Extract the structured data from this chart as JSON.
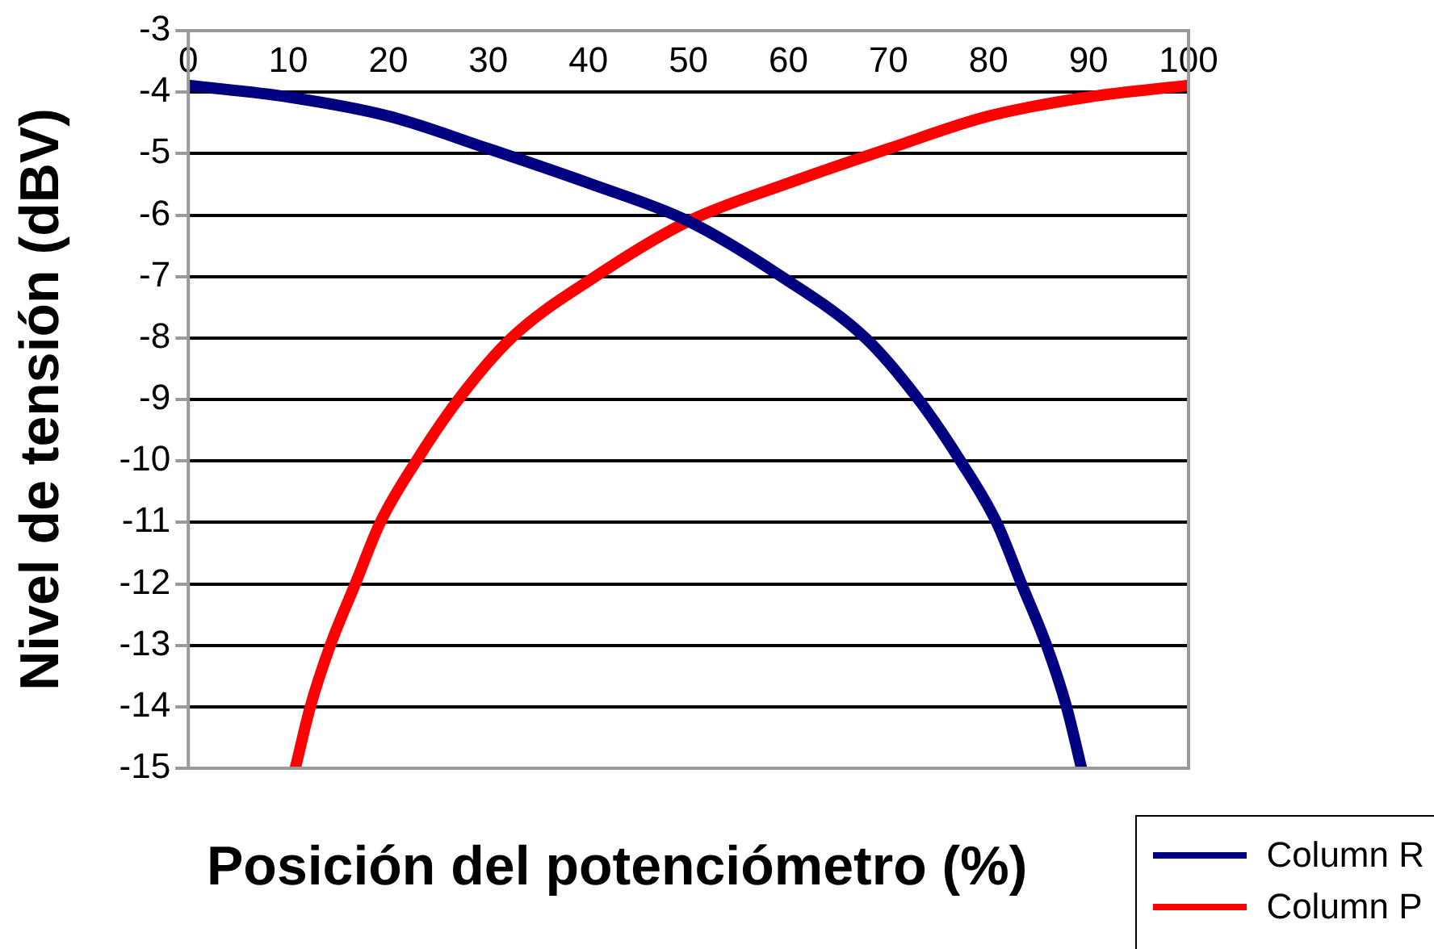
{
  "chart_data": {
    "type": "line",
    "xlabel": "Posición del potenciómetro (%)",
    "ylabel": "Nivel de tensión (dBV)",
    "xlim": [
      0,
      100
    ],
    "xticks": [
      0,
      10,
      20,
      30,
      40,
      50,
      60,
      70,
      80,
      90,
      100
    ],
    "ylim": [
      -15,
      -3
    ],
    "yticks": [
      -15,
      -14,
      -13,
      -12,
      -11,
      -10,
      -9,
      -8,
      -7,
      -6,
      -5,
      -4,
      -3
    ],
    "grid": "y",
    "legend": "bottom right",
    "marker": "none",
    "line_style": "solid",
    "series": [
      {
        "name": "Column R",
        "color": "#000080",
        "x": [
          0,
          10,
          20,
          30,
          40,
          50,
          59.3,
          67.7,
          73,
          77.2,
          80.8,
          83.3,
          85.8,
          87.8,
          89.3
        ],
        "values": [
          -3.89,
          -4.08,
          -4.39,
          -4.92,
          -5.48,
          -6.1,
          -7,
          -8,
          -9,
          -10,
          -11,
          -12,
          -13,
          -14,
          -15
        ]
      },
      {
        "name": "Column P",
        "color": "#ff0000",
        "x": [
          10.7,
          12.2,
          14.2,
          16.7,
          19.2,
          22.8,
          27,
          32.3,
          40.7,
          50,
          60,
          70,
          80,
          90,
          100
        ],
        "values": [
          -15,
          -14,
          -13,
          -12,
          -11,
          -10,
          -9,
          -8,
          -7,
          -6.1,
          -5.48,
          -4.92,
          -4.39,
          -4.08,
          -3.89
        ]
      }
    ]
  }
}
